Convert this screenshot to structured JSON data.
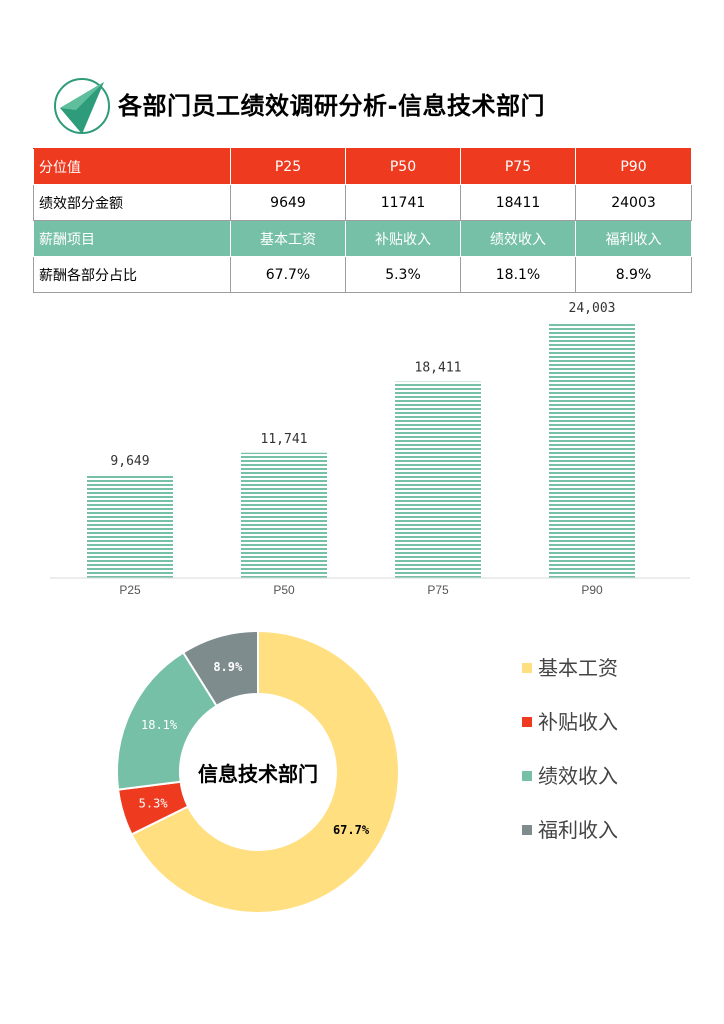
{
  "header": {
    "title": "各部门员工绩效调研分析-信息技术部门",
    "logo_icon": "triangle-compass-logo-icon"
  },
  "table": {
    "rows": [
      {
        "cells": [
          "分位值",
          "P25",
          "P50",
          "P75",
          "P90"
        ]
      },
      {
        "cells": [
          "绩效部分金额",
          "9649",
          "11741",
          "18411",
          "24003"
        ]
      },
      {
        "cells": [
          "薪酬项目",
          "基本工资",
          "补贴收入",
          "绩效收入",
          "福利收入"
        ]
      },
      {
        "cells": [
          "薪酬各部分占比",
          "67.7%",
          "5.3%",
          "18.1%",
          "8.9%"
        ]
      }
    ]
  },
  "chart_data": [
    {
      "type": "bar",
      "categories": [
        "P25",
        "P50",
        "P75",
        "P90"
      ],
      "values": [
        9649,
        11741,
        18411,
        24003
      ],
      "data_labels": [
        "9,649",
        "11,741",
        "18,411",
        "24,003"
      ],
      "title": "",
      "xlabel": "",
      "ylabel": "",
      "ylim": [
        0,
        25000
      ],
      "grid": false,
      "color": "#76c0a7"
    },
    {
      "type": "pie",
      "donut": true,
      "center_label": "信息技术部门",
      "labels": [
        "基本工资",
        "补贴收入",
        "绩效收入",
        "福利收入"
      ],
      "values": [
        67.7,
        5.3,
        18.1,
        8.9
      ],
      "data_labels": [
        "67.7%",
        "5.3%",
        "18.1%",
        "8.9%"
      ],
      "colors": [
        "#ffdf80",
        "#ee3a1f",
        "#76c0a7",
        "#7f8c8d"
      ],
      "legend": "right"
    }
  ]
}
